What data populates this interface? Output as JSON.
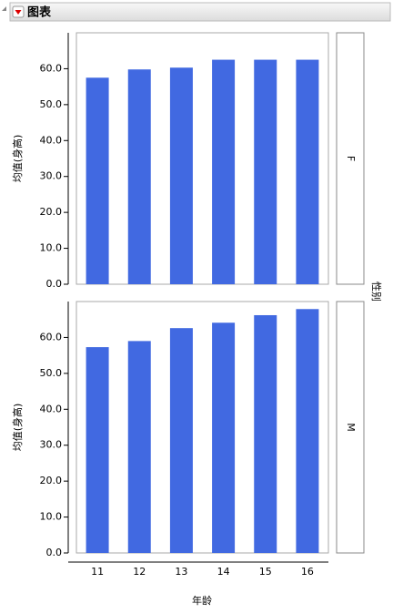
{
  "header": {
    "title": "图表"
  },
  "chart_data": {
    "type": "bar",
    "ylabel": "均值(身高)",
    "xlabel": "年龄",
    "facet_label": "性别",
    "categories": [
      "11",
      "12",
      "13",
      "14",
      "15",
      "16"
    ],
    "color": "#4169e1",
    "ylim": [
      0,
      70
    ],
    "yticks": [
      {
        "value": 0,
        "label": "0.0"
      },
      {
        "value": 10,
        "label": "10.0"
      },
      {
        "value": 20,
        "label": "20.0"
      },
      {
        "value": 30,
        "label": "30.0"
      },
      {
        "value": 40,
        "label": "40.0"
      },
      {
        "value": 50,
        "label": "50.0"
      },
      {
        "value": 60,
        "label": "60.0"
      }
    ],
    "panels": [
      {
        "name": "F",
        "values": [
          57.5,
          59.8,
          60.3,
          62.5,
          62.5,
          62.5
        ]
      },
      {
        "name": "M",
        "values": [
          57.3,
          59.0,
          62.6,
          64.1,
          66.2,
          67.9
        ]
      }
    ]
  }
}
